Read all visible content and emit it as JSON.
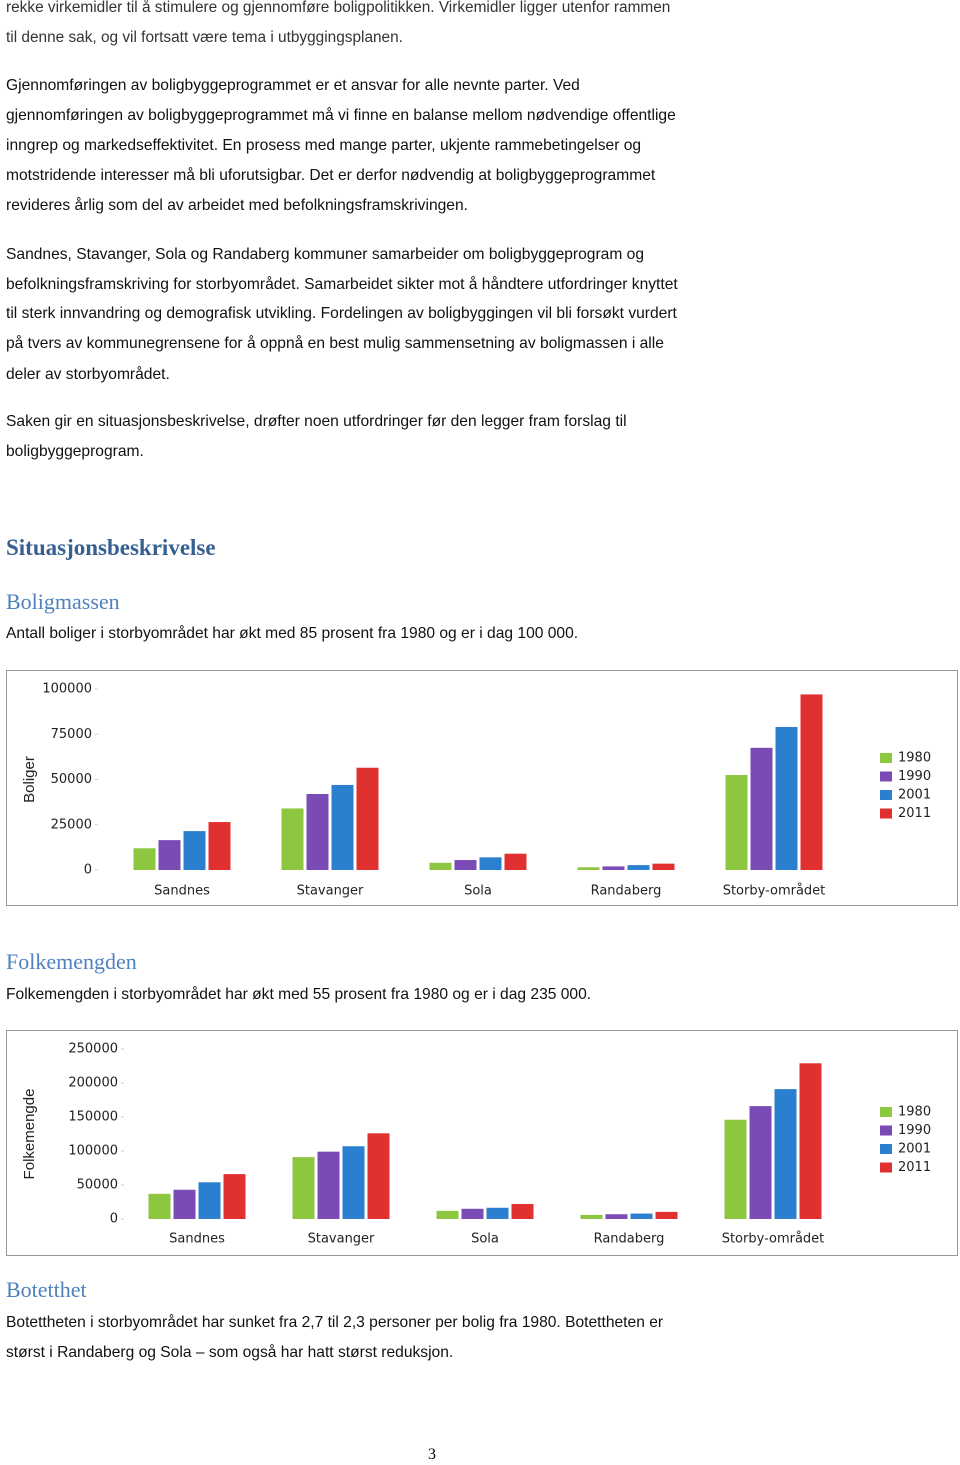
{
  "intro": [
    "rekke virkemidler til å stimulere og gjennomføre boligpolitikken. Virkemidler ligger utenfor rammen",
    "til denne sak, og vil fortsatt være tema i utbyggingsplanen."
  ],
  "paragraphs": [
    [
      "Gjennomføringen av boligbyggeprogrammet er et ansvar for alle nevnte parter. Ved",
      "gjennomføringen av boligbyggeprogrammet må vi finne en balanse mellom nødvendige offentlige",
      "inngrep og markedseffektivitet. En prosess med mange parter, ukjente rammebetingelser og",
      "motstridende interesser må bli uforutsigbar. Det er derfor nødvendig at boligbyggeprogrammet",
      "revideres årlig som del av arbeidet med befolkningsframskrivingen."
    ],
    [
      "Sandnes, Stavanger, Sola og Randaberg kommuner samarbeider om boligbyggeprogram og",
      "befolkningsframskriving for storbyområdet. Samarbeidet sikter mot å håndtere utfordringer knyttet",
      "til sterk innvandring og demografisk utvikling. Fordelingen av boligbyggingen vil bli forsøkt vurdert",
      "på tvers av kommunegrensene for å oppnå en best mulig sammensetning av boligmassen i alle",
      "deler av storbyområdet."
    ],
    [
      "Saken gir en situasjonsbeskrivelse, drøfter noen utfordringer før den legger fram forslag til",
      "boligbyggeprogram."
    ]
  ],
  "heading": "Situasjonsbeskrivelse",
  "sections": [
    {
      "heading": "Boligmassen",
      "text": [
        "Antall boliger i storbyområdet har økt med 85 prosent fra 1980 og er i dag 100 000."
      ]
    },
    {
      "heading": "Folkemengden",
      "text": [
        "Folkemengden i storbyområdet har økt med 55 prosent fra 1980 og er i dag 235 000."
      ]
    },
    {
      "heading": "Botetthet",
      "text": [
        "Botettheten i storbyområdet har sunket fra 2,7 til 2,3 personer per bolig fra 1980. Botettheten er",
        "størst i Randaberg og Sola – som også har hatt størst reduksjon."
      ]
    }
  ],
  "page_number": 3,
  "chart_data": [
    {
      "type": "bar",
      "y_label": "Boliger",
      "categories": [
        "Sandnes",
        "Stavanger",
        "Sola",
        "Randaberg",
        "Storby-området"
      ],
      "series": [
        {
          "name": "1980",
          "color": "#8dc63f",
          "values": [
            12000,
            34000,
            4000,
            1500,
            52500
          ]
        },
        {
          "name": "1990",
          "color": "#7b4bb5",
          "values": [
            16500,
            42000,
            5500,
            2000,
            67500
          ]
        },
        {
          "name": "2001",
          "color": "#2a80cf",
          "values": [
            21500,
            47000,
            7000,
            2700,
            79000
          ]
        },
        {
          "name": "2011",
          "color": "#e0302f",
          "values": [
            26500,
            56500,
            9000,
            3500,
            97000
          ]
        }
      ],
      "ylim": [
        0,
        100000
      ],
      "yticks": [
        0,
        25000,
        50000,
        75000,
        100000
      ],
      "legend": "right"
    },
    {
      "type": "bar",
      "y_label": "Folkemengde",
      "categories": [
        "Sandnes",
        "Stavanger",
        "Sola",
        "Randaberg",
        "Storby-området"
      ],
      "series": [
        {
          "name": "1980",
          "color": "#8dc63f",
          "values": [
            37000,
            91000,
            12000,
            6000,
            146000
          ]
        },
        {
          "name": "1990",
          "color": "#7b4bb5",
          "values": [
            43000,
            99000,
            15000,
            7000,
            166000
          ]
        },
        {
          "name": "2001",
          "color": "#2a80cf",
          "values": [
            54000,
            107000,
            16500,
            8000,
            191000
          ]
        },
        {
          "name": "2011",
          "color": "#e0302f",
          "values": [
            66000,
            126000,
            22000,
            10500,
            229000
          ]
        }
      ],
      "ylim": [
        0,
        250000
      ],
      "yticks": [
        0,
        50000,
        100000,
        150000,
        200000,
        250000
      ],
      "legend": "right"
    }
  ]
}
